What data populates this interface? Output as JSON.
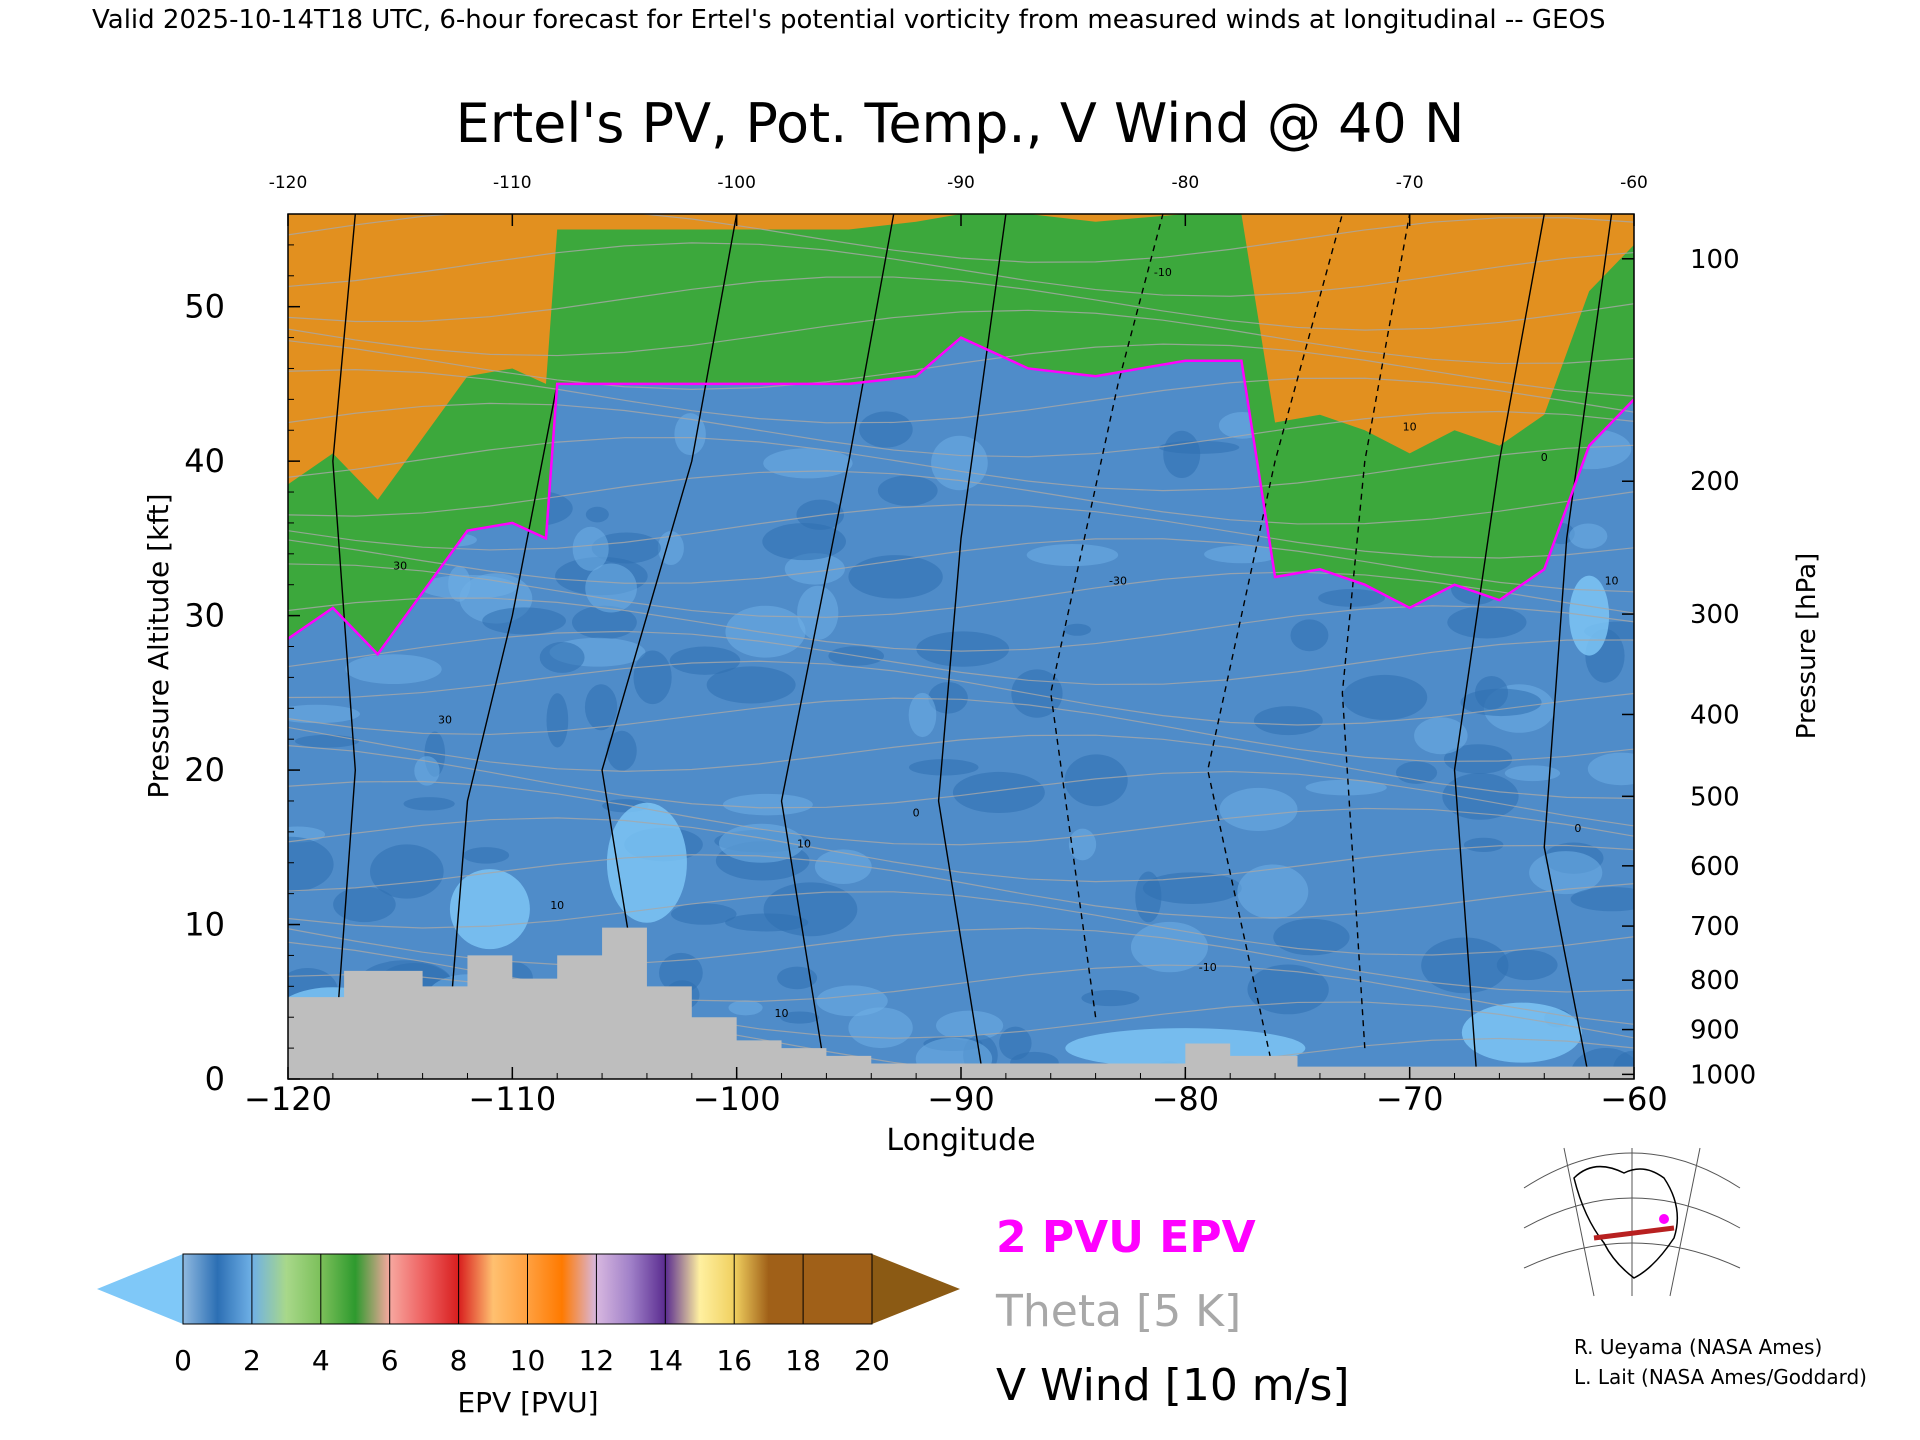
{
  "header": {
    "valid_line": "Valid 2025-10-14T18 UTC, 6-hour forecast for Ertel's potential vorticity from measured winds at longitudinal -- GEOS"
  },
  "chart_data": {
    "type": "heatmap",
    "title": "Ertel's PV, Pot. Temp., V Wind @ 40 N",
    "xlabel": "Longitude",
    "ylabel_left": "Pressure Altitude [kft]",
    "ylabel_right": "Pressure [hPa]",
    "xlim": [
      -120,
      -60
    ],
    "ylim": [
      0,
      56
    ],
    "x_ticks": [
      "-120",
      "-110",
      "-100",
      "-90",
      "-80",
      "-70",
      "-60"
    ],
    "y_ticks_left": [
      "0",
      "10",
      "20",
      "30",
      "40",
      "50"
    ],
    "right_axis": [
      {
        "label": "100",
        "kft": 53.1
      },
      {
        "label": "200",
        "kft": 38.7
      },
      {
        "label": "300",
        "kft": 30.1
      },
      {
        "label": "400",
        "kft": 23.6
      },
      {
        "label": "500",
        "kft": 18.3
      },
      {
        "label": "600",
        "kft": 13.8
      },
      {
        "label": "700",
        "kft": 9.9
      },
      {
        "label": "800",
        "kft": 6.4
      },
      {
        "label": "900",
        "kft": 3.2
      },
      {
        "label": "1000",
        "kft": 0.3
      }
    ],
    "epv_2pvu_tropopause_kft": [
      {
        "lon": -120,
        "kft": 28.5
      },
      {
        "lon": -118,
        "kft": 30.5
      },
      {
        "lon": -116,
        "kft": 27.5
      },
      {
        "lon": -114,
        "kft": 31.5
      },
      {
        "lon": -112,
        "kft": 35.5
      },
      {
        "lon": -110,
        "kft": 36
      },
      {
        "lon": -108.5,
        "kft": 35
      },
      {
        "lon": -108,
        "kft": 45
      },
      {
        "lon": -104,
        "kft": 45
      },
      {
        "lon": -100,
        "kft": 45
      },
      {
        "lon": -95,
        "kft": 45
      },
      {
        "lon": -92,
        "kft": 45.5
      },
      {
        "lon": -90,
        "kft": 48
      },
      {
        "lon": -87,
        "kft": 46
      },
      {
        "lon": -84,
        "kft": 45.5
      },
      {
        "lon": -80,
        "kft": 46.5
      },
      {
        "lon": -77.5,
        "kft": 46.5
      },
      {
        "lon": -76,
        "kft": 32.5
      },
      {
        "lon": -74,
        "kft": 33
      },
      {
        "lon": -72,
        "kft": 32
      },
      {
        "lon": -70,
        "kft": 30.5
      },
      {
        "lon": -68,
        "kft": 32
      },
      {
        "lon": -66,
        "kft": 31
      },
      {
        "lon": -64,
        "kft": 33
      },
      {
        "lon": -62,
        "kft": 41
      },
      {
        "lon": -60,
        "kft": 44
      }
    ],
    "terrain_kft": [
      {
        "lon": -120,
        "kft": 5.3
      },
      {
        "lon": -117.5,
        "kft": 7
      },
      {
        "lon": -114,
        "kft": 6
      },
      {
        "lon": -112,
        "kft": 8
      },
      {
        "lon": -110,
        "kft": 6.5
      },
      {
        "lon": -108,
        "kft": 8
      },
      {
        "lon": -106,
        "kft": 9.8
      },
      {
        "lon": -104,
        "kft": 6
      },
      {
        "lon": -102,
        "kft": 4
      },
      {
        "lon": -100,
        "kft": 2.5
      },
      {
        "lon": -98,
        "kft": 2
      },
      {
        "lon": -96,
        "kft": 1.5
      },
      {
        "lon": -94,
        "kft": 1
      },
      {
        "lon": -90,
        "kft": 1
      },
      {
        "lon": -85,
        "kft": 1
      },
      {
        "lon": -81,
        "kft": 1
      },
      {
        "lon": -80,
        "kft": 2.3
      },
      {
        "lon": -78,
        "kft": 1.5
      },
      {
        "lon": -75,
        "kft": 0.8
      },
      {
        "lon": -60,
        "kft": 0
      }
    ],
    "v_wind_contours": [
      {
        "label": "30",
        "lon": -115,
        "kft": 33
      },
      {
        "label": "30",
        "lon": -113,
        "kft": 23
      },
      {
        "label": "10",
        "lon": -108,
        "kft": 11
      },
      {
        "label": "10",
        "lon": -97,
        "kft": 15
      },
      {
        "label": "0",
        "lon": -92,
        "kft": 17
      },
      {
        "label": "10",
        "lon": -98,
        "kft": 4
      },
      {
        "label": "-30",
        "lon": -83,
        "kft": 32
      },
      {
        "label": "-10",
        "lon": -81,
        "kft": 52
      },
      {
        "label": "-10",
        "lon": -79,
        "kft": 7
      },
      {
        "label": "10",
        "lon": -70,
        "kft": 42
      },
      {
        "label": "0",
        "lon": -64,
        "kft": 40
      },
      {
        "label": "10",
        "lon": -61,
        "kft": 32
      },
      {
        "label": "0",
        "lon": -62.5,
        "kft": 16
      }
    ],
    "colorbar": {
      "label": "EPV [PVU]",
      "ticks": [
        "0",
        "2",
        "4",
        "6",
        "8",
        "10",
        "12",
        "14",
        "16",
        "18",
        "20"
      ]
    },
    "legend": [
      {
        "text": "2 PVU EPV",
        "color": "#ff00ff"
      },
      {
        "text": "Theta [5 K]",
        "color": "#a8a8a8"
      },
      {
        "text": "V Wind [10 m/s]",
        "color": "#000000"
      }
    ]
  },
  "credits": {
    "line1": "R. Ueyama (NASA Ames)",
    "line2": "L. Lait (NASA Ames/Goddard)"
  },
  "colors": {
    "terrain": "#bebebe",
    "tropo_contour": "#ff00ff",
    "strat_red": "#e02828",
    "strat_green": "#3ca83c",
    "strat_orange": "#ff8c1a",
    "trop_blue": "#4f8cc9",
    "below_zero": "#7fc8f8"
  }
}
